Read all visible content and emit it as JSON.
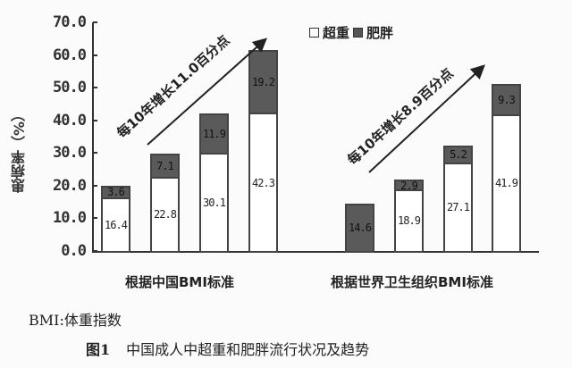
{
  "chart_data": {
    "type": "bar",
    "stacked": true,
    "title": "中国成人中超重和肥胖流行状况及趋势",
    "figure_label": "图1",
    "ylabel": "患病率（%）",
    "xlabel": "",
    "ylim": [
      0,
      70
    ],
    "yticks": [
      "70.0",
      "60.0",
      "50.0",
      "40.0",
      "30.0",
      "20.0",
      "10.0",
      "0.0"
    ],
    "grid": false,
    "legend": [
      "超重",
      "肥胖"
    ],
    "legend_position": "top-right",
    "groups": [
      {
        "label": "根据中国BMI标准",
        "trend": "每10年增长11.0百分点",
        "series": [
          {
            "name": "超重",
            "values": [
              16.4,
              22.8,
              30.1,
              42.3
            ]
          },
          {
            "name": "肥胖",
            "values": [
              3.6,
              7.1,
              11.9,
              19.2
            ]
          }
        ]
      },
      {
        "label": "根据世界卫生组织BMI标准",
        "trend": "每10年增长8.9百分点",
        "series": [
          {
            "name": "超重",
            "values": [
              null,
              18.9,
              27.1,
              41.9
            ]
          },
          {
            "name": "肥胖",
            "values": [
              14.6,
              2.9,
              5.2,
              9.3
            ]
          }
        ]
      }
    ]
  },
  "labels": {
    "ylabel": "患病率（%）",
    "legend_overweight": "超重",
    "legend_obese": "肥胖",
    "group1": "根据中国BMI标准",
    "group2": "根据世界卫生组织BMI标准",
    "trend1": "每10年增长11.0百分点",
    "trend2": "每10年增长8.9百分点",
    "note": "BMI:体重指数",
    "fig_label": "图1",
    "caption": "中国成人中超重和肥胖流行状况及趋势"
  },
  "colors": {
    "overweight": "#ffffff",
    "obese": "#5a5a5a",
    "axis": "#333333"
  }
}
